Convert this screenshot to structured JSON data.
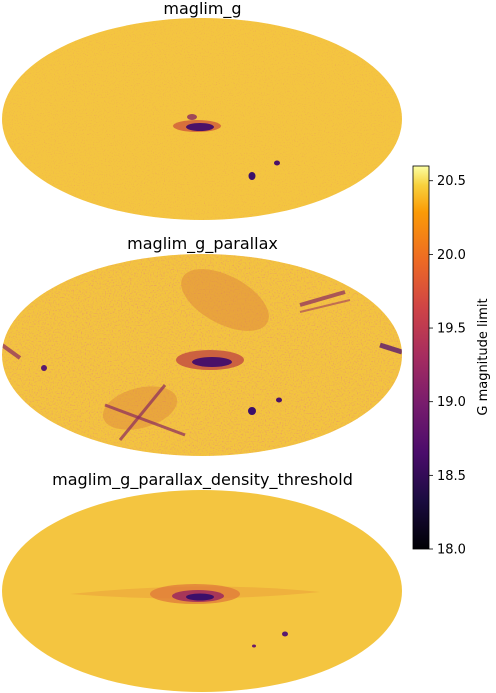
{
  "chart_data": {
    "type": "heatmap",
    "projection": "mollweide",
    "panels": [
      {
        "title": "maglim_g"
      },
      {
        "title": "maglim_g_parallax"
      },
      {
        "title": "maglim_g_parallax_density_threshold"
      }
    ],
    "colorbar": {
      "label": "G magnitude limit",
      "colormap": "inferno",
      "range": [
        18.0,
        20.6
      ],
      "ticks": [
        18.0,
        18.5,
        19.0,
        19.5,
        20.0,
        20.5
      ],
      "tick_labels": [
        "18.0",
        "18.5",
        "19.0",
        "19.5",
        "20.0",
        "20.5"
      ]
    },
    "colors": {
      "typical": "#f4c540",
      "low": "#5a1a6e",
      "mid": "#c9443c"
    }
  }
}
